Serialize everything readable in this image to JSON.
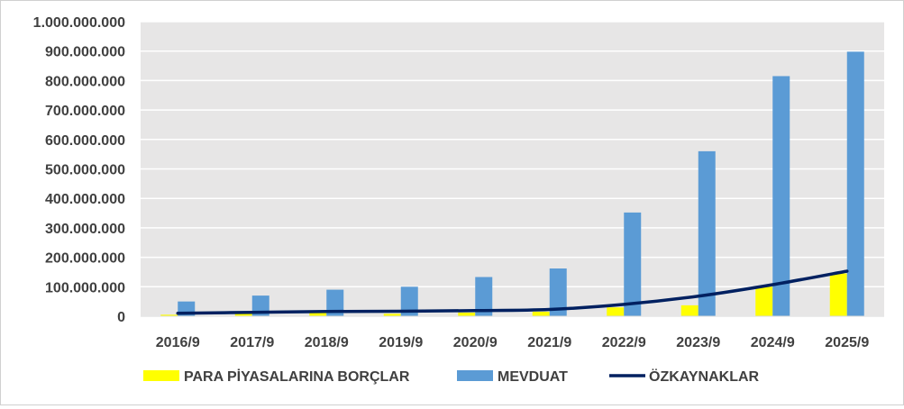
{
  "chart_data": {
    "type": "bar",
    "title": "",
    "xlabel": "",
    "ylabel": "",
    "categories": [
      "2016/9",
      "2017/9",
      "2018/9",
      "2019/9",
      "2020/9",
      "2021/9",
      "2022/9",
      "2023/9",
      "2024/9",
      "2025/9"
    ],
    "ylim": [
      0,
      1000000000
    ],
    "yticks": [
      0,
      100000000,
      200000000,
      300000000,
      400000000,
      500000000,
      600000000,
      700000000,
      800000000,
      900000000,
      1000000000
    ],
    "ytick_labels": [
      "0",
      "100.000.000",
      "200.000.000",
      "300.000.000",
      "400.000.000",
      "500.000.000",
      "600.000.000",
      "700.000.000",
      "800.000.000",
      "900.000.000",
      "1.000.000.000"
    ],
    "grid": true,
    "legend": "bottom",
    "series": [
      {
        "name": "PARA PİYASALARINA BORÇLAR",
        "type": "bar",
        "color": "#ffff00",
        "values": [
          5000000,
          10000000,
          12000000,
          8000000,
          12000000,
          15000000,
          30000000,
          37000000,
          100000000,
          145000000
        ]
      },
      {
        "name": "MEVDUAT",
        "type": "bar",
        "color": "#5b9bd5",
        "values": [
          50000000,
          70000000,
          90000000,
          100000000,
          133000000,
          162000000,
          352000000,
          560000000,
          815000000,
          898000000
        ]
      },
      {
        "name": "ÖZKAYNAKLAR",
        "type": "line",
        "color": "#002060",
        "values": [
          10000000,
          13000000,
          16000000,
          17000000,
          19000000,
          23000000,
          40000000,
          68000000,
          107000000,
          153000000
        ]
      }
    ]
  }
}
